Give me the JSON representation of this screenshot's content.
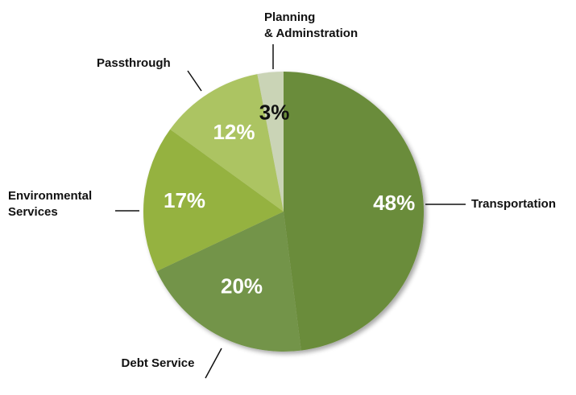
{
  "chart_data": {
    "type": "pie",
    "title": "",
    "slices": [
      {
        "label": "Transportation",
        "value": 48,
        "value_label": "48%",
        "color": "#6b8c3a",
        "label_color": "#ffffff"
      },
      {
        "label": "Debt Service",
        "value": 20,
        "value_label": "20%",
        "color": "#739448",
        "label_color": "#ffffff"
      },
      {
        "label": "Environmental Services",
        "value": 17,
        "value_label": "17%",
        "color": "#95b23f",
        "label_color": "#ffffff"
      },
      {
        "label": "Passthrough",
        "value": 12,
        "value_label": "12%",
        "color": "#acc462",
        "label_color": "#ffffff"
      },
      {
        "label": "Planning & Adminstration",
        "value": 3,
        "value_label": "3%",
        "color": "#cad4b6",
        "label_color": "#111111"
      }
    ],
    "label_lines": {
      "transportation": [
        "Transportation"
      ],
      "debt_service": [
        "Debt Service"
      ],
      "environmental": [
        "Environmental",
        "Services"
      ],
      "passthrough": [
        "Passthrough"
      ],
      "planning": [
        "Planning",
        "& Adminstration"
      ]
    },
    "legend": "none",
    "label_style": "callout-lines"
  }
}
